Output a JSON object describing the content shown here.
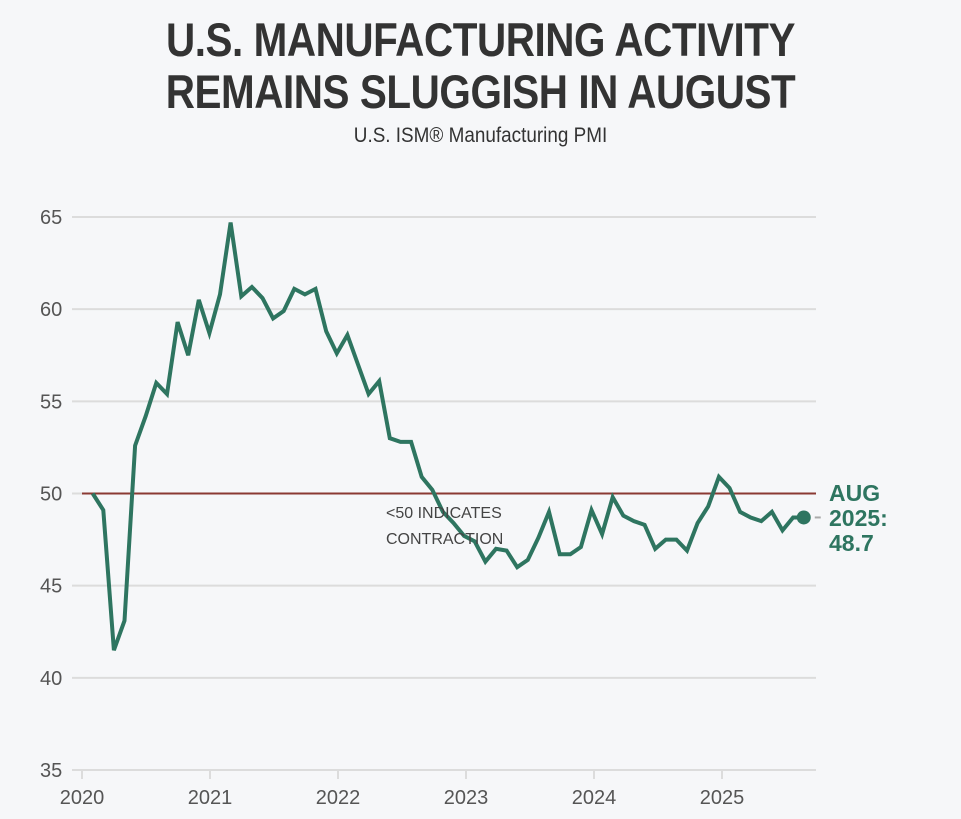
{
  "header": {
    "title_line1": "U.S. MANUFACTURING ACTIVITY",
    "title_line2": "REMAINS SLUGGISH IN AUGUST",
    "subtitle": "U.S. ISM® Manufacturing PMI"
  },
  "colors": {
    "line": "#2e7560",
    "threshold": "#8b3a33",
    "grid": "#dcdcdc",
    "background": "#f6f7f9"
  },
  "chart_data": {
    "type": "line",
    "title": "U.S. MANUFACTURING ACTIVITY REMAINS SLUGGISH IN AUGUST",
    "subtitle": "U.S. ISM® Manufacturing PMI",
    "xlabel": "",
    "ylabel": "",
    "ylim": [
      35,
      65
    ],
    "yticks": [
      35,
      40,
      45,
      50,
      55,
      60,
      65
    ],
    "xticks": [
      "2020",
      "2021",
      "2022",
      "2023",
      "2024",
      "2025"
    ],
    "grid": true,
    "start": "2020-01",
    "frequency": "monthly",
    "series": [
      {
        "name": "ISM Manufacturing PMI",
        "values": [
          50.0,
          49.1,
          41.5,
          43.1,
          52.6,
          54.2,
          56.0,
          55.4,
          59.3,
          57.5,
          60.5,
          58.7,
          60.8,
          64.7,
          60.7,
          61.2,
          60.6,
          59.5,
          59.9,
          61.1,
          60.8,
          61.1,
          58.8,
          57.6,
          58.6,
          57.0,
          55.4,
          56.1,
          53.0,
          52.8,
          52.8,
          50.9,
          50.2,
          49.0,
          48.4,
          47.7,
          47.4,
          46.3,
          47.0,
          46.9,
          46.0,
          46.4,
          47.6,
          49.0,
          46.7,
          46.7,
          47.1,
          49.1,
          47.8,
          49.8,
          48.8,
          48.5,
          48.3,
          47.0,
          47.5,
          47.5,
          46.9,
          48.4,
          49.3,
          50.9,
          50.3,
          49.0,
          48.7,
          48.5,
          49.0,
          48.0,
          48.7,
          48.7
        ]
      }
    ],
    "reference_line": {
      "value": 50,
      "label": "<50 INDICATES CONTRACTION"
    },
    "annotation_line1": "<50 INDICATES",
    "annotation_line2": "CONTRACTION",
    "callout": {
      "line1": "AUG",
      "line2": "2025:",
      "line3": "48.7",
      "value": 48.7
    }
  }
}
